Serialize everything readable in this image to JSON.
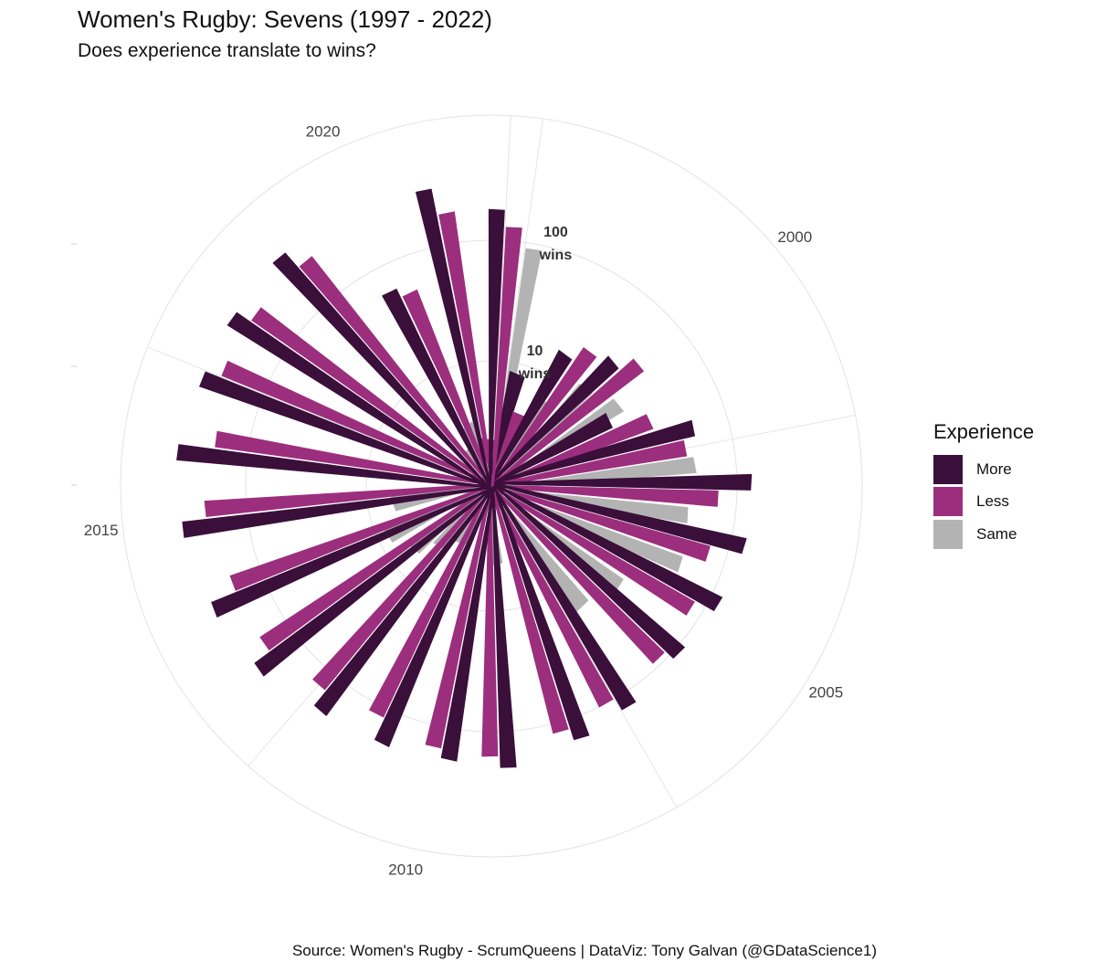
{
  "header": {
    "title": "Women's Rugby: Sevens (1997 - 2022)",
    "subtitle": "Does experience translate to wins?"
  },
  "caption": "Source: Women's Rugby - ScrumQueens  |  DataViz: Tony Galvan (@GDataScience1)",
  "legend": {
    "title": "Experience",
    "items": [
      {
        "label": "More",
        "color": "#3a0f3a"
      },
      {
        "label": "Less",
        "color": "#9c2e7e"
      },
      {
        "label": "Same",
        "color": "#b3b3b3"
      }
    ]
  },
  "chart_data": {
    "type": "bar",
    "coord": "polar",
    "y_scale": "log10",
    "x_range": [
      1997,
      2022
    ],
    "rings": [
      1,
      10,
      100,
      1000
    ],
    "ring_labels": [
      {
        "value": 10,
        "text": [
          "10",
          "wins"
        ]
      },
      {
        "value": 100,
        "text": [
          "100",
          "wins"
        ]
      }
    ],
    "year_labels": [
      "2000",
      "2005",
      "2010",
      "2015",
      "2020"
    ],
    "year_ticks": [
      2000,
      2005,
      2010,
      2015,
      2020
    ],
    "colors": {
      "More": "#3a0f3a",
      "Less": "#9c2e7e",
      "Same": "#b3b3b3"
    },
    "bars": [
      {
        "year": 1997,
        "group": "Same",
        "wins": 90
      },
      {
        "year": 1997,
        "group": "Less",
        "wins": 2.2
      },
      {
        "year": 1998,
        "group": "More",
        "wins": 8
      },
      {
        "year": 1998,
        "group": "Same",
        "wins": 6
      },
      {
        "year": 1998,
        "group": "Less",
        "wins": 4
      },
      {
        "year": 1999,
        "group": "More",
        "wins": 16
      },
      {
        "year": 1999,
        "group": "Same",
        "wins": 12
      },
      {
        "year": 1999,
        "group": "Less",
        "wins": 22
      },
      {
        "year": 2000,
        "group": "More",
        "wins": 25
      },
      {
        "year": 2000,
        "group": "Same",
        "wins": 16
      },
      {
        "year": 2000,
        "group": "Less",
        "wins": 35
      },
      {
        "year": 2001,
        "group": "More",
        "wins": 12
      },
      {
        "year": 2001,
        "group": "Less",
        "wins": 24
      },
      {
        "year": 2002,
        "group": "More",
        "wins": 50
      },
      {
        "year": 2002,
        "group": "Same",
        "wins": 45
      },
      {
        "year": 2002,
        "group": "Less",
        "wins": 40
      },
      {
        "year": 2003,
        "group": "More",
        "wins": 130
      },
      {
        "year": 2003,
        "group": "Same",
        "wins": 40
      },
      {
        "year": 2003,
        "group": "Less",
        "wins": 70
      },
      {
        "year": 2004,
        "group": "More",
        "wins": 130
      },
      {
        "year": 2004,
        "group": "Same",
        "wins": 45
      },
      {
        "year": 2004,
        "group": "Less",
        "wins": 70
      },
      {
        "year": 2005,
        "group": "More",
        "wins": 120
      },
      {
        "year": 2005,
        "group": "Same",
        "wins": 20
      },
      {
        "year": 2005,
        "group": "Less",
        "wins": 80
      },
      {
        "year": 2006,
        "group": "More",
        "wins": 110
      },
      {
        "year": 2006,
        "group": "Same",
        "wins": 16
      },
      {
        "year": 2006,
        "group": "Less",
        "wins": 90
      },
      {
        "year": 2007,
        "group": "More",
        "wins": 130
      },
      {
        "year": 2007,
        "group": "Less",
        "wins": 100
      },
      {
        "year": 2008,
        "group": "More",
        "wins": 150
      },
      {
        "year": 2008,
        "group": "Same",
        "wins": 4
      },
      {
        "year": 2008,
        "group": "Less",
        "wins": 120
      },
      {
        "year": 2009,
        "group": "More",
        "wins": 200
      },
      {
        "year": 2009,
        "group": "Less",
        "wins": 160
      },
      {
        "year": 2010,
        "group": "More",
        "wins": 180
      },
      {
        "year": 2010,
        "group": "Same",
        "wins": 3
      },
      {
        "year": 2010,
        "group": "Less",
        "wins": 150
      },
      {
        "year": 2011,
        "group": "More",
        "wins": 190
      },
      {
        "year": 2011,
        "group": "Same",
        "wins": 4
      },
      {
        "year": 2011,
        "group": "Less",
        "wins": 120
      },
      {
        "year": 2012,
        "group": "More",
        "wins": 200
      },
      {
        "year": 2012,
        "group": "Same",
        "wins": 6
      },
      {
        "year": 2012,
        "group": "Less",
        "wins": 140
      },
      {
        "year": 2013,
        "group": "More",
        "wins": 260
      },
      {
        "year": 2013,
        "group": "Same",
        "wins": 8
      },
      {
        "year": 2013,
        "group": "Less",
        "wins": 180
      },
      {
        "year": 2014,
        "group": "More",
        "wins": 300
      },
      {
        "year": 2014,
        "group": "Same",
        "wins": 6
      },
      {
        "year": 2014,
        "group": "Less",
        "wins": 180
      },
      {
        "year": 2015,
        "group": "More",
        "wins": 350
      },
      {
        "year": 2015,
        "group": "Less",
        "wins": 220
      },
      {
        "year": 2016,
        "group": "More",
        "wins": 380
      },
      {
        "year": 2016,
        "group": "Less",
        "wins": 190
      },
      {
        "year": 2017,
        "group": "More",
        "wins": 330
      },
      {
        "year": 2017,
        "group": "Less",
        "wins": 240
      },
      {
        "year": 2018,
        "group": "More",
        "wins": 330
      },
      {
        "year": 2018,
        "group": "Same",
        "wins": 2
      },
      {
        "year": 2018,
        "group": "Less",
        "wins": 240
      },
      {
        "year": 2019,
        "group": "More",
        "wins": 350
      },
      {
        "year": 2019,
        "group": "Same",
        "wins": 3
      },
      {
        "year": 2019,
        "group": "Less",
        "wins": 240
      },
      {
        "year": 2020,
        "group": "More",
        "wins": 60
      },
      {
        "year": 2020,
        "group": "Less",
        "wins": 50
      },
      {
        "year": 2021,
        "group": "More",
        "wins": 300
      },
      {
        "year": 2021,
        "group": "Less",
        "wins": 180
      },
      {
        "year": 2022,
        "group": "More",
        "wins": 180
      },
      {
        "year": 2022,
        "group": "Less",
        "wins": 130
      }
    ]
  }
}
